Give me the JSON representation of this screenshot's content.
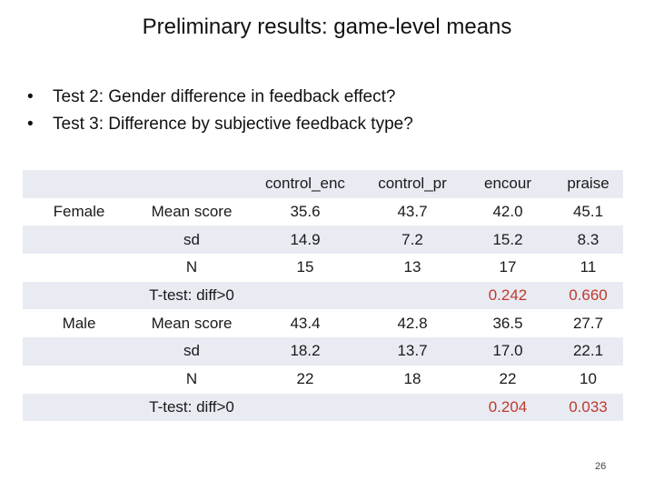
{
  "title": "Preliminary results: game-level means",
  "bullets": [
    "Test 2: Gender difference in feedback effect?",
    "Test 3: Difference by subjective feedback type?"
  ],
  "table": {
    "columns": [
      "control_enc",
      "control_pr",
      "encour",
      "praise"
    ],
    "groups": [
      "Female",
      "Male"
    ],
    "rows": [
      {
        "group": "",
        "label": "",
        "values": [
          "control_enc",
          "control_pr",
          "encour",
          "praise"
        ]
      },
      {
        "group": "Female",
        "label": "Mean score",
        "values": [
          "35.6",
          "43.7",
          "42.0",
          "45.1"
        ]
      },
      {
        "group": "",
        "label": "sd",
        "values": [
          "14.9",
          "7.2",
          "15.2",
          "8.3"
        ]
      },
      {
        "group": "",
        "label": "N",
        "values": [
          "15",
          "13",
          "17",
          "11"
        ]
      },
      {
        "group": "",
        "label": "T-test: diff>0",
        "values": [
          "",
          "",
          "0.242",
          "0.660"
        ]
      },
      {
        "group": "Male",
        "label": "Mean score",
        "values": [
          "43.4",
          "42.8",
          "36.5",
          "27.7"
        ]
      },
      {
        "group": "",
        "label": "sd",
        "values": [
          "18.2",
          "13.7",
          "17.0",
          "22.1"
        ]
      },
      {
        "group": "",
        "label": "N",
        "values": [
          "22",
          "18",
          "22",
          "10"
        ]
      },
      {
        "group": "",
        "label": "T-test: diff>0",
        "values": [
          "",
          "",
          "0.204",
          "0.033"
        ]
      }
    ]
  },
  "page_number": "26",
  "colors": {
    "band": "#e9ebf3",
    "pvalue": "#c0392b"
  }
}
